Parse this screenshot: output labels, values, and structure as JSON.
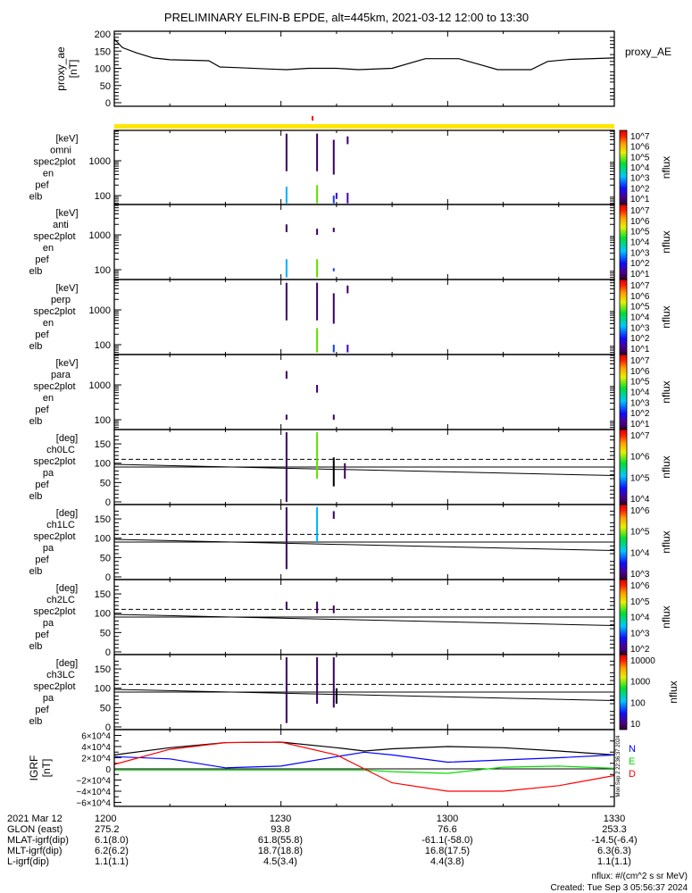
{
  "title": "PRELIMINARY ELFIN-B EPDE, alt=445km, 2021-03-12 12:00 to 13:30",
  "colors": {
    "axis": "#000000",
    "quality_bar": "#ffe600",
    "quality_flag": "#ff0000",
    "igrf_total": "#000000",
    "igrf_N": "#0000ff",
    "igrf_E": "#00dd00",
    "igrf_D": "#ff0000"
  },
  "chart_data": [
    {
      "type": "line",
      "name": "proxy_ae",
      "ylabel": [
        "proxy_ae",
        "[nT]"
      ],
      "legend": "proxy_AE",
      "ylim": [
        0,
        200
      ],
      "yticks": [
        "0",
        "50",
        "100",
        "150",
        "200"
      ],
      "x_minutes": [
        0,
        1.5,
        4,
        7,
        10,
        17,
        19,
        22,
        28,
        31,
        35,
        40,
        44,
        50,
        56,
        62,
        66,
        69,
        75,
        78,
        82,
        90
      ],
      "values": [
        185,
        160,
        145,
        130,
        125,
        122,
        104,
        102,
        98,
        96,
        100,
        100,
        96,
        100,
        128,
        128,
        110,
        96,
        96,
        120,
        126,
        130
      ]
    },
    {
      "type": "heatmap",
      "kind": "energy",
      "ylabel": [
        "elb",
        "pef",
        "en",
        "spec2plot",
        "omni",
        "[keV]"
      ],
      "yticks": [
        "100",
        "1000"
      ],
      "zlabel": "nflux",
      "zticks": [
        "10^7",
        "10^6",
        "10^5",
        "10^4",
        "10^3",
        "10^2",
        "10^1"
      ],
      "streaks": [
        [
          31,
          60,
          180,
          4
        ],
        [
          31,
          500,
          6000,
          1
        ],
        [
          36.5,
          60,
          200,
          5
        ],
        [
          36.5,
          500,
          6000,
          1
        ],
        [
          39.5,
          60,
          100,
          3
        ],
        [
          39.5,
          400,
          4000,
          1
        ],
        [
          40,
          80,
          120,
          2
        ],
        [
          42,
          60,
          120,
          2
        ],
        [
          42,
          3000,
          5000,
          1
        ]
      ]
    },
    {
      "type": "heatmap",
      "kind": "energy",
      "ylabel": [
        "elb",
        "pef",
        "en",
        "spec2plot",
        "anti",
        "[keV]"
      ],
      "yticks": [
        "100",
        "1000"
      ],
      "zlabel": "nflux",
      "zticks": [
        "10^7",
        "10^6",
        "10^5",
        "10^4",
        "10^3",
        "10^2",
        "10^1"
      ],
      "streaks": [
        [
          31,
          60,
          200,
          4
        ],
        [
          31,
          1200,
          2000,
          1
        ],
        [
          36.5,
          60,
          200,
          5
        ],
        [
          36.5,
          1000,
          1500,
          1
        ],
        [
          39.5,
          90,
          110,
          3
        ],
        [
          39.5,
          1200,
          1600,
          1
        ]
      ]
    },
    {
      "type": "heatmap",
      "kind": "energy",
      "ylabel": [
        "elb",
        "pef",
        "en",
        "spec2plot",
        "perp",
        "[keV]"
      ],
      "yticks": [
        "100",
        "1000"
      ],
      "zlabel": "nflux",
      "zticks": [
        "10^7",
        "10^6",
        "10^5",
        "10^4",
        "10^3",
        "10^2",
        "10^1"
      ],
      "streaks": [
        [
          31,
          500,
          6000,
          1
        ],
        [
          36.5,
          60,
          300,
          5
        ],
        [
          36.5,
          500,
          6000,
          1
        ],
        [
          39.5,
          60,
          100,
          3
        ],
        [
          39.5,
          400,
          3000,
          1
        ],
        [
          42,
          60,
          100,
          2
        ],
        [
          42,
          3000,
          5000,
          1
        ]
      ]
    },
    {
      "type": "heatmap",
      "kind": "energy",
      "ylabel": [
        "elb",
        "pef",
        "en",
        "spec2plot",
        "para",
        "[keV]"
      ],
      "yticks": [
        "100",
        "1000"
      ],
      "zlabel": "nflux",
      "zticks": [
        "10^7",
        "10^6",
        "10^5",
        "10^4",
        "10^3",
        "10^2",
        "10^1"
      ],
      "streaks": [
        [
          31,
          1500,
          2500,
          1
        ],
        [
          31,
          100,
          140,
          1
        ],
        [
          36.5,
          600,
          1000,
          1
        ],
        [
          39.5,
          100,
          140,
          1
        ]
      ]
    },
    {
      "type": "heatmap",
      "kind": "pitch",
      "ylabel": [
        "elb",
        "pef",
        "pa",
        "spec2plot",
        "ch0LC",
        "[deg]"
      ],
      "ylim": [
        0,
        180
      ],
      "yticks": [
        "0",
        "50",
        "100",
        "150"
      ],
      "zlabel": "nflux",
      "zticks": [
        "10^7",
        "10^6",
        "10^5",
        "10^4"
      ],
      "loss_cone_dashed": 110,
      "line_90": 90,
      "slant": [
        97,
        68
      ],
      "streaks": [
        [
          31,
          0,
          180,
          1
        ],
        [
          36.5,
          60,
          180,
          5
        ],
        [
          39.5,
          40,
          115,
          0
        ],
        [
          41.5,
          60,
          100,
          1
        ]
      ]
    },
    {
      "type": "heatmap",
      "kind": "pitch",
      "ylabel": [
        "elb",
        "pef",
        "pa",
        "spec2plot",
        "ch1LC",
        "[deg]"
      ],
      "ylim": [
        0,
        180
      ],
      "yticks": [
        "0",
        "50",
        "100",
        "150"
      ],
      "zlabel": "nflux",
      "zticks": [
        "10^6",
        "10^5",
        "10^4",
        "10^3"
      ],
      "loss_cone_dashed": 110,
      "line_90": 90,
      "slant": [
        97,
        68
      ],
      "streaks": [
        [
          31,
          20,
          180,
          1
        ],
        [
          36.5,
          90,
          180,
          4
        ],
        [
          39.5,
          150,
          170,
          1
        ]
      ]
    },
    {
      "type": "heatmap",
      "kind": "pitch",
      "ylabel": [
        "elb",
        "pef",
        "pa",
        "spec2plot",
        "ch2LC",
        "[deg]"
      ],
      "ylim": [
        0,
        180
      ],
      "yticks": [
        "0",
        "50",
        "100",
        "150"
      ],
      "zlabel": "nflux",
      "zticks": [
        "10^6",
        "10^5",
        "10^4",
        "10^3",
        "10^2"
      ],
      "loss_cone_dashed": 110,
      "line_90": 90,
      "slant": [
        97,
        68
      ],
      "streaks": [
        [
          31,
          110,
          130,
          1
        ],
        [
          36.5,
          100,
          130,
          1
        ],
        [
          39.5,
          100,
          120,
          1
        ]
      ]
    },
    {
      "type": "heatmap",
      "kind": "pitch",
      "ylabel": [
        "elb",
        "pef",
        "pa",
        "spec2plot",
        "ch3LC",
        "[deg]"
      ],
      "ylim": [
        0,
        180
      ],
      "yticks": [
        "0",
        "50",
        "100",
        "150"
      ],
      "zlabel": "nflux",
      "zticks": [
        "10000",
        "1000",
        "100",
        "10"
      ],
      "loss_cone_dashed": 110,
      "line_90": 90,
      "slant": [
        97,
        68
      ],
      "streaks": [
        [
          31,
          10,
          180,
          1
        ],
        [
          36.5,
          60,
          180,
          1
        ],
        [
          39.5,
          50,
          180,
          1
        ],
        [
          40,
          60,
          100,
          0
        ]
      ]
    },
    {
      "type": "line",
      "name": "IGRF",
      "ylabel": [
        "IGRF",
        "[nT]"
      ],
      "ylim": [
        -60000,
        60000
      ],
      "yticks": [
        "6×10^4",
        "4×10^4",
        "2×10^4",
        "0",
        "−2×10^4",
        "−4×10^4",
        "−6×10^4"
      ],
      "legend": [
        "N",
        "E",
        "D"
      ],
      "x_minutes": [
        0,
        10,
        20,
        30,
        40,
        45,
        50,
        60,
        70,
        80,
        90
      ],
      "series": [
        {
          "name": "total",
          "values": [
            25000,
            38000,
            47000,
            48000,
            38000,
            32000,
            36000,
            40000,
            38000,
            32000,
            25000
          ]
        },
        {
          "name": "N",
          "values": [
            22000,
            18000,
            2000,
            5000,
            22000,
            30000,
            25000,
            12000,
            16000,
            20000,
            25000
          ]
        },
        {
          "name": "E",
          "values": [
            -2000,
            -2000,
            -2000,
            -2000,
            -2000,
            -2000,
            -5000,
            -8000,
            3000,
            5000,
            1000
          ]
        },
        {
          "name": "D",
          "values": [
            8000,
            35000,
            47000,
            48000,
            25000,
            0,
            -25000,
            -40000,
            -40000,
            -30000,
            -12000
          ]
        }
      ]
    }
  ],
  "x_axis": {
    "ticks": [
      "1200",
      "1230",
      "1300",
      "1330"
    ]
  },
  "ephemeris": {
    "rows": [
      {
        "label": "2021 Mar 12",
        "values": [
          "1200",
          "1230",
          "1300",
          "1330"
        ]
      },
      {
        "label": "GLON (east)",
        "values": [
          "275.2",
          "93.8",
          "76.6",
          "253.3"
        ]
      },
      {
        "label": "MLAT-igrf(dip)",
        "values": [
          "6.1(8.0)",
          "61.8(55.8)",
          "-61.1(-58.0)",
          "-14.5(-6.4)"
        ]
      },
      {
        "label": "MLT-igrf(dip)",
        "values": [
          "6.2(6.2)",
          "18.7(18.8)",
          "16.8(17.5)",
          "6.3(6.3)"
        ]
      },
      {
        "label": "L-igrf(dip)",
        "values": [
          "1.1(1.1)",
          "4.5(3.4)",
          "4.4(3.8)",
          "1.1(1.1)"
        ]
      }
    ]
  },
  "footer": {
    "units": "nflux: #/(cm^2 s sr MeV)",
    "created": "Created: Tue Sep  3 05:56:37 2024",
    "side_stamp": "Mon Sep  2 22:36:37 2024"
  }
}
